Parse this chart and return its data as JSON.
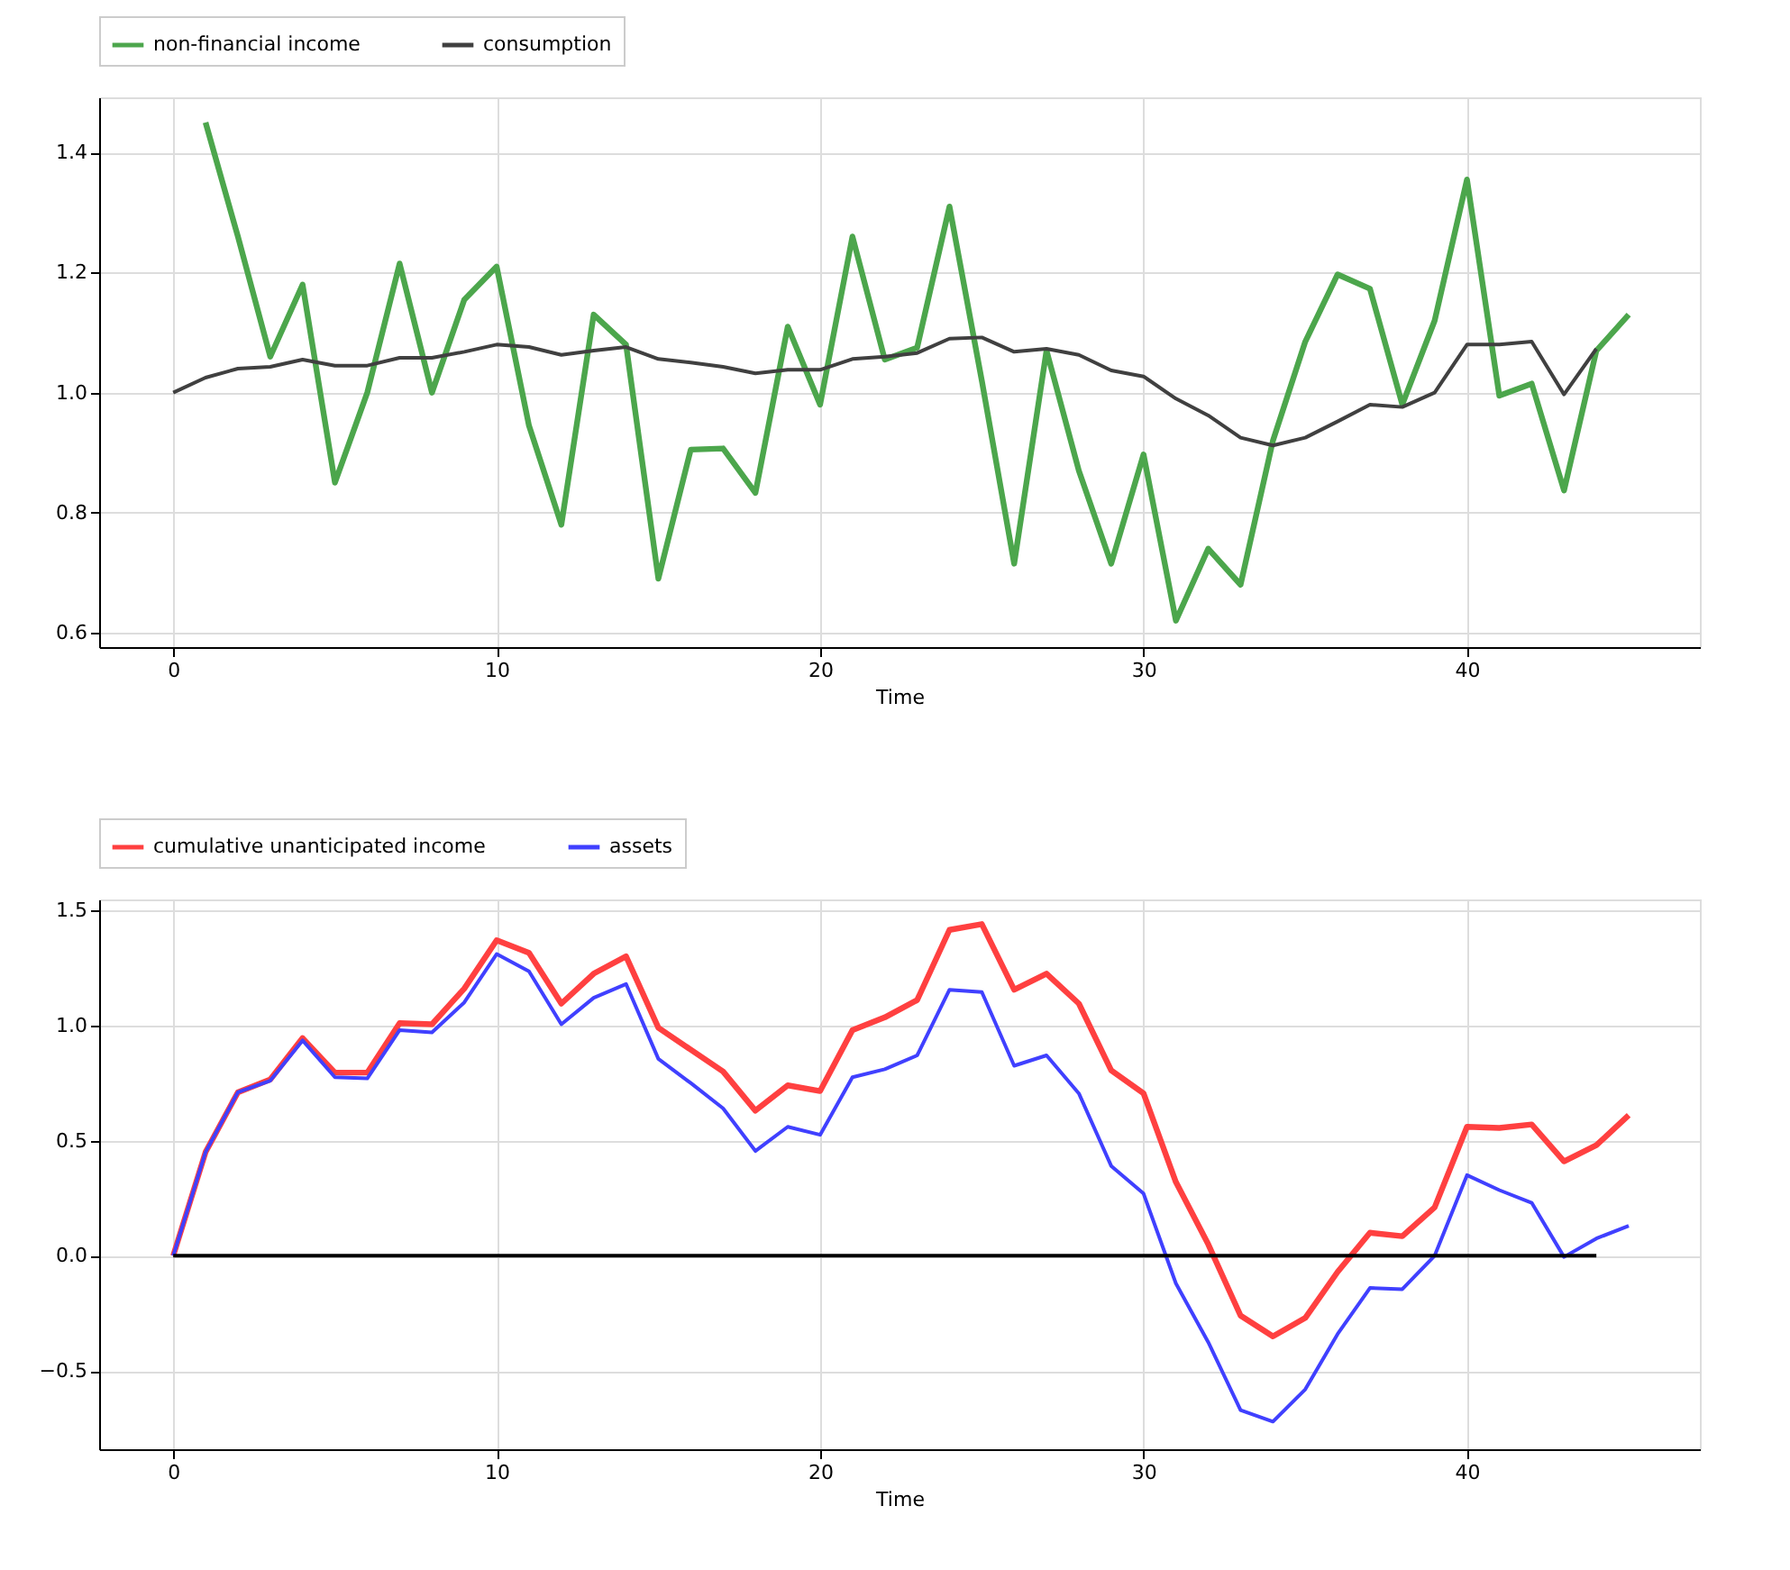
{
  "chart_data": [
    {
      "type": "line",
      "xlabel": "Time",
      "x": [
        0,
        1,
        2,
        3,
        4,
        5,
        6,
        7,
        8,
        9,
        10,
        11,
        12,
        13,
        14,
        15,
        16,
        17,
        18,
        19,
        20,
        21,
        22,
        23,
        24,
        25,
        26,
        27,
        28,
        29,
        30,
        31,
        32,
        33,
        34,
        35,
        36,
        37,
        38,
        39,
        40,
        41,
        42,
        43,
        44,
        45
      ],
      "xlim": [
        -2.29,
        47.2
      ],
      "xticks": [
        0,
        10,
        20,
        30,
        40
      ],
      "ylim": [
        0.576,
        1.492
      ],
      "yticks": [
        {
          "value": 0.6,
          "label": "0.6"
        },
        {
          "value": 0.8,
          "label": "0.8"
        },
        {
          "value": 1.0,
          "label": "1.0"
        },
        {
          "value": 1.2,
          "label": "1.2"
        },
        {
          "value": 1.4,
          "label": "1.4"
        }
      ],
      "grid": true,
      "legend": "top",
      "line_style": "solid",
      "marker": "none",
      "series": [
        {
          "name": "non-financial income",
          "color": "#4ca64c",
          "values": [
            null,
            1.45,
            1.26,
            1.06,
            1.18,
            0.85,
            1.0,
            1.215,
            1.0,
            1.155,
            1.21,
            0.945,
            0.78,
            1.13,
            1.08,
            0.69,
            0.905,
            0.907,
            0.833,
            1.11,
            0.98,
            1.26,
            1.055,
            1.075,
            1.31,
            1.02,
            0.715,
            1.07,
            0.87,
            0.715,
            0.897,
            0.62,
            0.74,
            0.68,
            0.92,
            1.085,
            1.197,
            1.173,
            0.98,
            1.12,
            1.355,
            0.995,
            1.015,
            0.837,
            1.07,
            1.13
          ]
        },
        {
          "name": "consumption",
          "color": "#404040",
          "values": [
            1.0,
            1.025,
            1.04,
            1.043,
            1.055,
            1.045,
            1.045,
            1.058,
            1.058,
            1.068,
            1.08,
            1.076,
            1.063,
            1.07,
            1.076,
            1.056,
            1.05,
            1.043,
            1.032,
            1.038,
            1.038,
            1.056,
            1.06,
            1.066,
            1.09,
            1.092,
            1.068,
            1.073,
            1.063,
            1.037,
            1.027,
            0.99,
            0.962,
            0.925,
            0.912,
            0.925,
            0.952,
            0.98,
            0.976,
            1.0,
            1.08,
            1.08,
            1.085,
            0.997,
            1.073,
            null
          ]
        }
      ]
    },
    {
      "type": "line",
      "xlabel": "Time",
      "x": [
        0,
        1,
        2,
        3,
        4,
        5,
        6,
        7,
        8,
        9,
        10,
        11,
        12,
        13,
        14,
        15,
        16,
        17,
        18,
        19,
        20,
        21,
        22,
        23,
        24,
        25,
        26,
        27,
        28,
        29,
        30,
        31,
        32,
        33,
        34,
        35,
        36,
        37,
        38,
        39,
        40,
        41,
        42,
        43,
        44,
        45
      ],
      "xlim": [
        -2.29,
        47.2
      ],
      "xticks": [
        0,
        10,
        20,
        30,
        40
      ],
      "ylim": [
        -0.84,
        1.547
      ],
      "yticks": [
        {
          "value": -0.5,
          "label": "−0.5"
        },
        {
          "value": 0,
          "label": "0.0"
        },
        {
          "value": 0.5,
          "label": "0.5"
        },
        {
          "value": 1.0,
          "label": "1.0"
        },
        {
          "value": 1.5,
          "label": "1.5"
        }
      ],
      "grid": true,
      "legend": "top",
      "line_style": "solid",
      "marker": "none",
      "series": [
        {
          "name": "cumulative unanticipated income",
          "color": "#ff4040",
          "values": [
            0,
            0.45,
            0.71,
            0.765,
            0.945,
            0.795,
            0.795,
            1.01,
            1.005,
            1.16,
            1.37,
            1.315,
            1.095,
            1.225,
            1.3,
            0.99,
            0.895,
            0.8,
            0.63,
            0.74,
            0.715,
            0.98,
            1.035,
            1.11,
            1.415,
            1.44,
            1.155,
            1.225,
            1.095,
            0.805,
            0.705,
            0.32,
            0.05,
            -0.26,
            -0.35,
            -0.27,
            -0.07,
            0.1,
            0.085,
            0.21,
            0.56,
            0.555,
            0.57,
            0.41,
            0.48,
            0.61
          ]
        },
        {
          "name": "assets",
          "color": "#4040ff",
          "values": [
            0,
            0.45,
            0.71,
            0.76,
            0.935,
            0.775,
            0.77,
            0.98,
            0.97,
            1.1,
            1.31,
            1.235,
            1.005,
            1.12,
            1.18,
            0.855,
            0.75,
            0.64,
            0.455,
            0.56,
            0.525,
            0.775,
            0.81,
            0.87,
            1.155,
            1.145,
            0.825,
            0.87,
            0.705,
            0.39,
            0.27,
            -0.12,
            -0.375,
            -0.67,
            -0.72,
            -0.58,
            -0.34,
            -0.14,
            -0.145,
            0.0,
            0.35,
            0.285,
            0.23,
            -0.005,
            0.075,
            0.13
          ]
        },
        {
          "color": "#000000",
          "x": [
            0,
            44
          ],
          "values": [
            0,
            0
          ]
        }
      ]
    }
  ]
}
